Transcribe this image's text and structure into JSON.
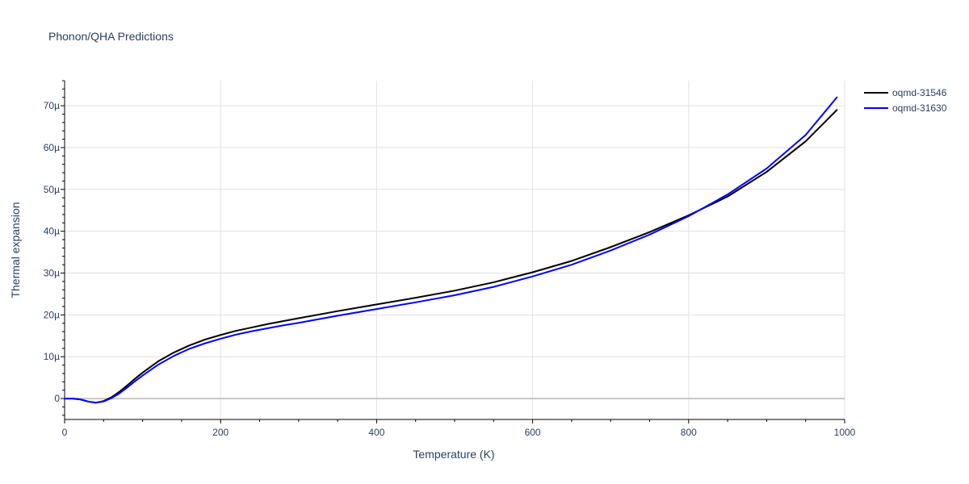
{
  "chart_data": {
    "type": "line",
    "title": "Phonon/QHA Predictions",
    "xlabel": "Temperature (K)",
    "ylabel": "Thermal expansion",
    "xlim": [
      0,
      1000
    ],
    "ylim": [
      -5,
      76
    ],
    "y_unit_suffix": "µ",
    "x_ticks": [
      0,
      200,
      400,
      600,
      800,
      1000
    ],
    "y_ticks": [
      0,
      10,
      20,
      30,
      40,
      50,
      60,
      70
    ],
    "grid": true,
    "legend_position": "top-right",
    "series": [
      {
        "name": "oqmd-31546",
        "color": "#000000",
        "x": [
          0,
          10,
          20,
          30,
          40,
          50,
          60,
          70,
          80,
          90,
          100,
          120,
          140,
          160,
          180,
          200,
          220,
          240,
          260,
          280,
          300,
          350,
          400,
          450,
          500,
          550,
          600,
          650,
          700,
          750,
          800,
          850,
          900,
          950,
          990
        ],
        "y": [
          0,
          0,
          -0.2,
          -0.7,
          -1.0,
          -0.6,
          0.3,
          1.6,
          3.1,
          4.7,
          6.2,
          8.9,
          11.0,
          12.7,
          14.1,
          15.2,
          16.2,
          17.0,
          17.8,
          18.5,
          19.2,
          20.9,
          22.5,
          24.1,
          25.8,
          27.8,
          30.2,
          32.9,
          36.2,
          39.8,
          43.8,
          48.3,
          54.2,
          61.5,
          69.0
        ]
      },
      {
        "name": "oqmd-31630",
        "color": "#0000ff",
        "x": [
          0,
          10,
          20,
          30,
          40,
          50,
          60,
          70,
          80,
          90,
          100,
          120,
          140,
          160,
          180,
          200,
          220,
          240,
          260,
          280,
          300,
          350,
          400,
          450,
          500,
          550,
          600,
          650,
          700,
          750,
          800,
          850,
          900,
          950,
          990
        ],
        "y": [
          0,
          0,
          -0.2,
          -0.7,
          -1.0,
          -0.7,
          0.1,
          1.2,
          2.6,
          4.1,
          5.5,
          8.1,
          10.2,
          11.9,
          13.2,
          14.3,
          15.3,
          16.1,
          16.8,
          17.5,
          18.1,
          19.8,
          21.4,
          23.0,
          24.7,
          26.7,
          29.2,
          32.0,
          35.4,
          39.2,
          43.6,
          48.8,
          55.0,
          63.0,
          72.0
        ]
      }
    ]
  }
}
